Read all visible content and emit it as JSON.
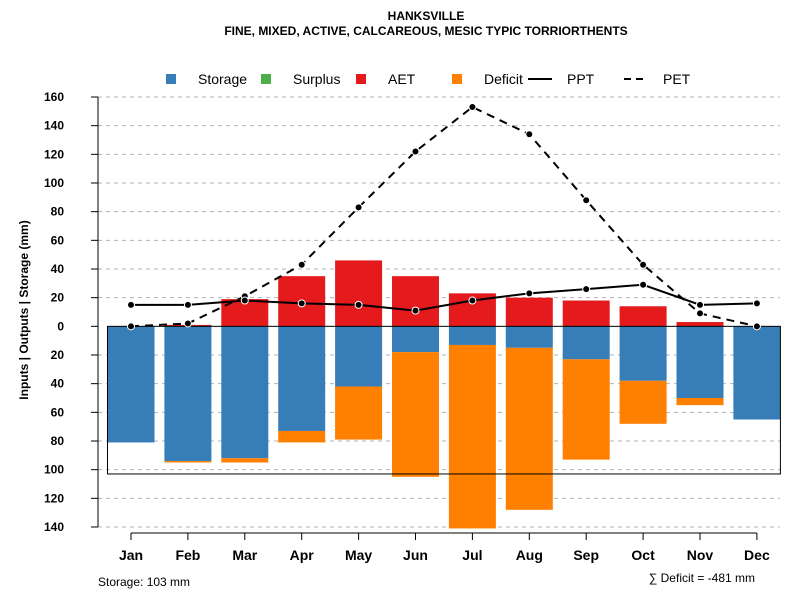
{
  "chart_data": {
    "type": "bar",
    "title": "HANKSVILLE",
    "subtitle": "FINE, MIXED, ACTIVE, CALCAREOUS, MESIC TYPIC TORRIORTHENTS",
    "ylabel": "Inputs | Outputs | Storage    (mm)",
    "categories": [
      "Jan",
      "Feb",
      "Mar",
      "Apr",
      "May",
      "Jun",
      "Jul",
      "Aug",
      "Sep",
      "Oct",
      "Nov",
      "Dec"
    ],
    "ylim": [
      -140,
      160
    ],
    "y_ticks": [
      160,
      140,
      120,
      100,
      80,
      60,
      40,
      20,
      0,
      -20,
      -40,
      -60,
      -80,
      -100,
      -120,
      -140
    ],
    "y_tick_labels": [
      "160",
      "140",
      "120",
      "100",
      "80",
      "60",
      "40",
      "20",
      "0",
      "20",
      "40",
      "60",
      "80",
      "100",
      "120",
      "140"
    ],
    "grid": true,
    "legend": {
      "position": "top",
      "items": [
        {
          "label": "Storage",
          "kind": "box",
          "color": "#377eb8"
        },
        {
          "label": "Surplus",
          "kind": "box",
          "color": "#4daf4a"
        },
        {
          "label": "AET",
          "kind": "box",
          "color": "#e41a1c"
        },
        {
          "label": "Deficit",
          "kind": "box",
          "color": "#ff7f00"
        },
        {
          "label": "PPT",
          "kind": "solid"
        },
        {
          "label": "PET",
          "kind": "dashed"
        }
      ]
    },
    "series": [
      {
        "name": "AET",
        "color": "#e41a1c",
        "values": [
          0,
          1,
          19,
          35,
          46,
          35,
          23,
          20,
          18,
          14,
          3,
          0
        ]
      },
      {
        "name": "Surplus",
        "color": "#4daf4a",
        "values": [
          0,
          0,
          0,
          0,
          0,
          0,
          0,
          0,
          0,
          0,
          0,
          0
        ]
      },
      {
        "name": "Storage",
        "color": "#377eb8",
        "values": [
          81,
          94,
          92,
          73,
          42,
          18,
          13,
          15,
          23,
          38,
          50,
          65
        ]
      },
      {
        "name": "Deficit",
        "color": "#ff7f00",
        "values": [
          0,
          1,
          3,
          8,
          37,
          87,
          128,
          113,
          70,
          30,
          5,
          0
        ]
      },
      {
        "name": "PPT",
        "style": "solid",
        "values": [
          15,
          15,
          18,
          16,
          15,
          11,
          18,
          23,
          26,
          29,
          15,
          16
        ]
      },
      {
        "name": "PET",
        "style": "dashed",
        "values": [
          0,
          2,
          21,
          43,
          83,
          122,
          153,
          134,
          88,
          43,
          9,
          0
        ]
      }
    ],
    "storage_capacity": 103,
    "footer_left": "Storage: 103 mm",
    "footer_right": "∑ Deficit = -481 mm"
  }
}
